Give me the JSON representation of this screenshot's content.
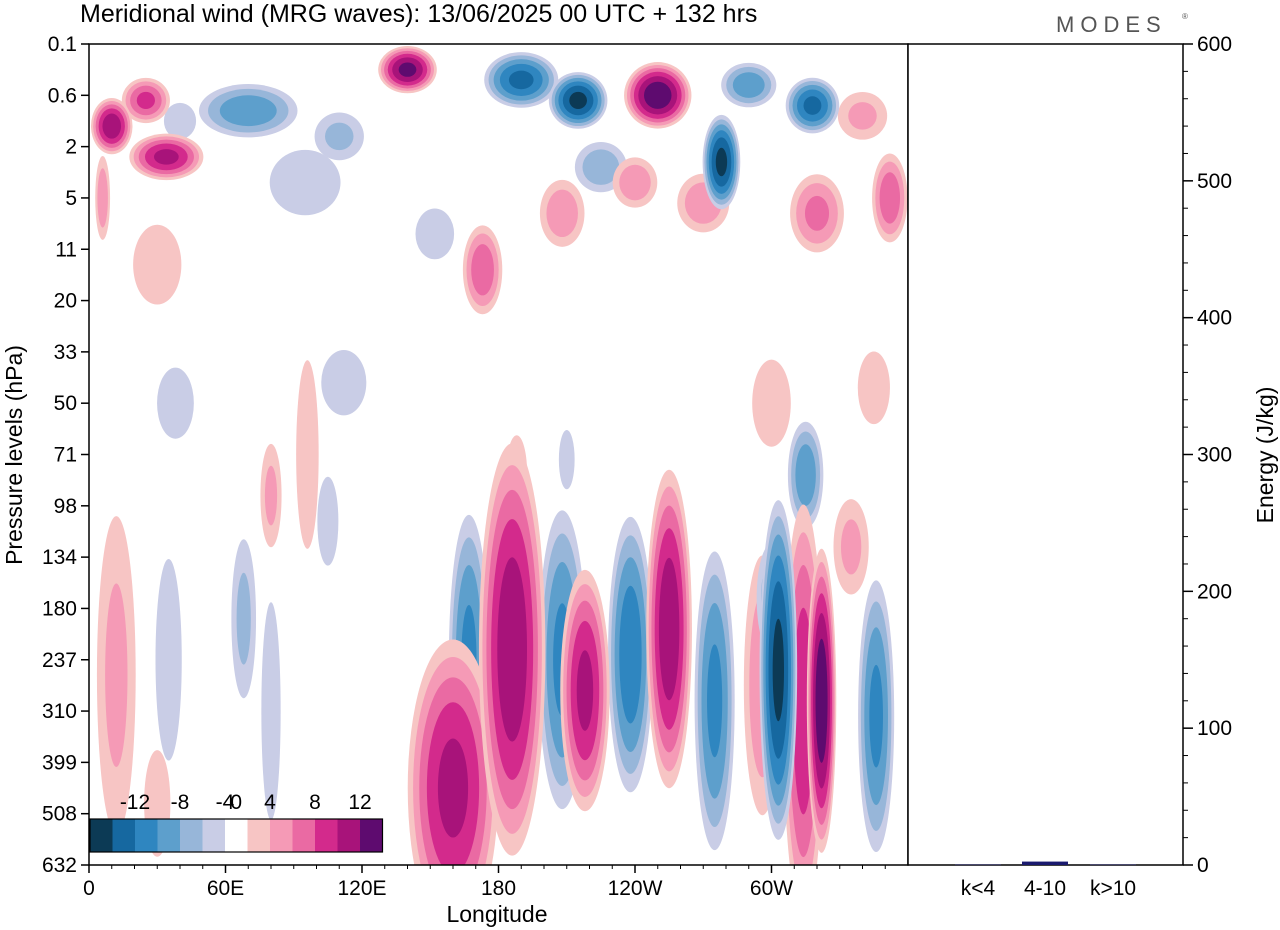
{
  "title": "Meridional wind (MRG waves):  13/06/2025  00 UTC  + 132 hrs",
  "brand": "MODES",
  "brand_mark": "®",
  "chart_data": [
    {
      "type": "heatmap",
      "xlabel": "Longitude",
      "ylabel": "Pressure levels (hPa)",
      "x_ticks": [
        "0",
        "60E",
        "120E",
        "180",
        "120W",
        "60W"
      ],
      "x_range_deg": [
        0,
        360
      ],
      "y_ticks": [
        "0.1",
        "0.6",
        "2",
        "5",
        "11",
        "20",
        "33",
        "50",
        "71",
        "98",
        "134",
        "180",
        "237",
        "310",
        "399",
        "508",
        "632"
      ],
      "colorbar": {
        "labels": [
          "-12",
          "-8",
          "-4",
          "0",
          "4",
          "8",
          "12"
        ],
        "levels": [
          -14,
          -12,
          -10,
          -8,
          -6,
          -4,
          -2,
          2,
          4,
          6,
          8,
          10,
          12,
          14
        ],
        "colors": [
          "#0c3a55",
          "#1668a0",
          "#2f86c0",
          "#5d9fcc",
          "#97b6d9",
          "#c9cde6",
          "#ffffff",
          "#f7c5c4",
          "#f59ab6",
          "#ea6aa3",
          "#d32a8c",
          "#a8137a",
          "#5e0b6f"
        ]
      },
      "blobs": [
        {
          "lon": 160,
          "lev": 1.5,
          "w": 22,
          "h": 3.2,
          "v": 11
        },
        {
          "lon": 167,
          "lev": 4.0,
          "w": 10,
          "h": 3.2,
          "v": -9
        },
        {
          "lon": 186,
          "lev": 4.2,
          "w": 16,
          "h": 4.4,
          "v": 12
        },
        {
          "lon": 208,
          "lev": 4.0,
          "w": 12,
          "h": 3.3,
          "v": -9
        },
        {
          "lon": 218,
          "lev": 3.4,
          "w": 12,
          "h": 2.6,
          "v": 11
        },
        {
          "lon": 238,
          "lev": 4.1,
          "w": 11,
          "h": 3.0,
          "v": -10
        },
        {
          "lon": 255,
          "lev": 4.6,
          "w": 11,
          "h": 3.4,
          "v": 12
        },
        {
          "lon": 275,
          "lev": 3.2,
          "w": 10,
          "h": 3.3,
          "v": -9
        },
        {
          "lon": 296,
          "lev": 3.5,
          "w": 10,
          "h": 3.1,
          "v": 6
        },
        {
          "lon": 303,
          "lev": 3.8,
          "w": 9,
          "h": 3.6,
          "v": -13
        },
        {
          "lon": 314,
          "lev": 3.0,
          "w": 10,
          "h": 4.5,
          "v": 10
        },
        {
          "lon": 322,
          "lev": 3.2,
          "w": 7,
          "h": 3.2,
          "v": 14
        },
        {
          "lon": 346,
          "lev": 2.9,
          "w": 9,
          "h": 3.0,
          "v": -9
        },
        {
          "lon": 300,
          "lev": 5.2,
          "w": 8,
          "h": 1.3,
          "v": -6
        },
        {
          "lon": 12,
          "lev": 3.7,
          "w": 11,
          "h": 4.0,
          "v": 5
        },
        {
          "lon": 30,
          "lev": 1.2,
          "w": 10,
          "h": 1.8,
          "v": 3
        },
        {
          "lon": 35,
          "lev": 4.0,
          "w": 10,
          "h": 3.4,
          "v": -3
        },
        {
          "lon": 68,
          "lev": 4.8,
          "w": 7,
          "h": 2.0,
          "v": -5
        },
        {
          "lon": 80,
          "lev": 3.0,
          "w": 6,
          "h": 3.0,
          "v": -4
        },
        {
          "lon": 96,
          "lev": 8.0,
          "w": 7,
          "h": 2.6,
          "v": 4
        },
        {
          "lon": 80,
          "lev": 7.2,
          "w": 6,
          "h": 1.3,
          "v": 5
        },
        {
          "lon": 105,
          "lev": 6.7,
          "w": 8,
          "h": 1.5,
          "v": -3
        },
        {
          "lon": 188,
          "lev": 7.6,
          "w": 6,
          "h": 1.0,
          "v": 5
        },
        {
          "lon": 210,
          "lev": 7.9,
          "w": 6,
          "h": 1.0,
          "v": -3
        },
        {
          "lon": 335,
          "lev": 6.2,
          "w": 10,
          "h": 1.2,
          "v": 5
        },
        {
          "lon": 315,
          "lev": 7.6,
          "w": 9,
          "h": 1.2,
          "v": -8
        },
        {
          "lon": 300,
          "lev": 9.0,
          "w": 12,
          "h": 1.2,
          "v": 4
        },
        {
          "lon": 345,
          "lev": 9.3,
          "w": 10,
          "h": 1.0,
          "v": 4
        },
        {
          "lon": 112,
          "lev": 9.4,
          "w": 14,
          "h": 0.9,
          "v": -4
        },
        {
          "lon": 38,
          "lev": 9.0,
          "w": 14,
          "h": 1.2,
          "v": -3
        },
        {
          "lon": 173,
          "lev": 11.6,
          "w": 10,
          "h": 1.0,
          "v": 8
        },
        {
          "lon": 208,
          "lev": 12.7,
          "w": 12,
          "h": 0.8,
          "v": 6
        },
        {
          "lon": 30,
          "lev": 11.7,
          "w": 15,
          "h": 1.1,
          "v": 4
        },
        {
          "lon": 152,
          "lev": 12.3,
          "w": 12,
          "h": 0.7,
          "v": -4
        },
        {
          "lon": 270,
          "lev": 12.9,
          "w": 14,
          "h": 0.7,
          "v": 6
        },
        {
          "lon": 320,
          "lev": 12.7,
          "w": 14,
          "h": 0.9,
          "v": 7
        },
        {
          "lon": 352,
          "lev": 13.0,
          "w": 9,
          "h": 1.0,
          "v": 8
        },
        {
          "lon": 95,
          "lev": 13.3,
          "w": 22,
          "h": 0.9,
          "v": -4
        },
        {
          "lon": 10,
          "lev": 14.4,
          "w": 10,
          "h": 0.6,
          "v": 12
        },
        {
          "lon": 25,
          "lev": 14.9,
          "w": 12,
          "h": 0.5,
          "v": 9
        },
        {
          "lon": 40,
          "lev": 14.5,
          "w": 10,
          "h": 0.5,
          "v": -4
        },
        {
          "lon": 70,
          "lev": 14.7,
          "w": 25,
          "h": 0.6,
          "v": -8
        },
        {
          "lon": 110,
          "lev": 14.2,
          "w": 14,
          "h": 0.6,
          "v": -5
        },
        {
          "lon": 140,
          "lev": 15.5,
          "w": 14,
          "h": 0.5,
          "v": 13
        },
        {
          "lon": 190,
          "lev": 15.3,
          "w": 18,
          "h": 0.6,
          "v": -11
        },
        {
          "lon": 215,
          "lev": 14.9,
          "w": 14,
          "h": 0.6,
          "v": -13
        },
        {
          "lon": 225,
          "lev": 13.6,
          "w": 14,
          "h": 0.6,
          "v": -6
        },
        {
          "lon": 250,
          "lev": 15.0,
          "w": 16,
          "h": 0.7,
          "v": 14
        },
        {
          "lon": 278,
          "lev": 13.7,
          "w": 9,
          "h": 1.0,
          "v": -13
        },
        {
          "lon": 290,
          "lev": 15.2,
          "w": 14,
          "h": 0.5,
          "v": -8
        },
        {
          "lon": 318,
          "lev": 14.8,
          "w": 13,
          "h": 0.6,
          "v": -11
        },
        {
          "lon": 240,
          "lev": 13.3,
          "w": 12,
          "h": 0.6,
          "v": 6
        },
        {
          "lon": 34,
          "lev": 13.8,
          "w": 18,
          "h": 0.5,
          "v": 11
        },
        {
          "lon": 340,
          "lev": 14.6,
          "w": 14,
          "h": 0.6,
          "v": 5
        },
        {
          "lon": 6,
          "lev": 13.0,
          "w": 4,
          "h": 1.0,
          "v": 6
        }
      ]
    },
    {
      "type": "bar",
      "ylabel": "Energy (J/kg)",
      "categories": [
        "k<4",
        "4-10",
        "k>10"
      ],
      "values": [
        0.3,
        2.5,
        0.3
      ],
      "ylim": [
        0,
        600
      ],
      "y_ticks": [
        "0",
        "100",
        "200",
        "300",
        "400",
        "500",
        "600"
      ],
      "bar_color": "#1a1a6e"
    }
  ]
}
